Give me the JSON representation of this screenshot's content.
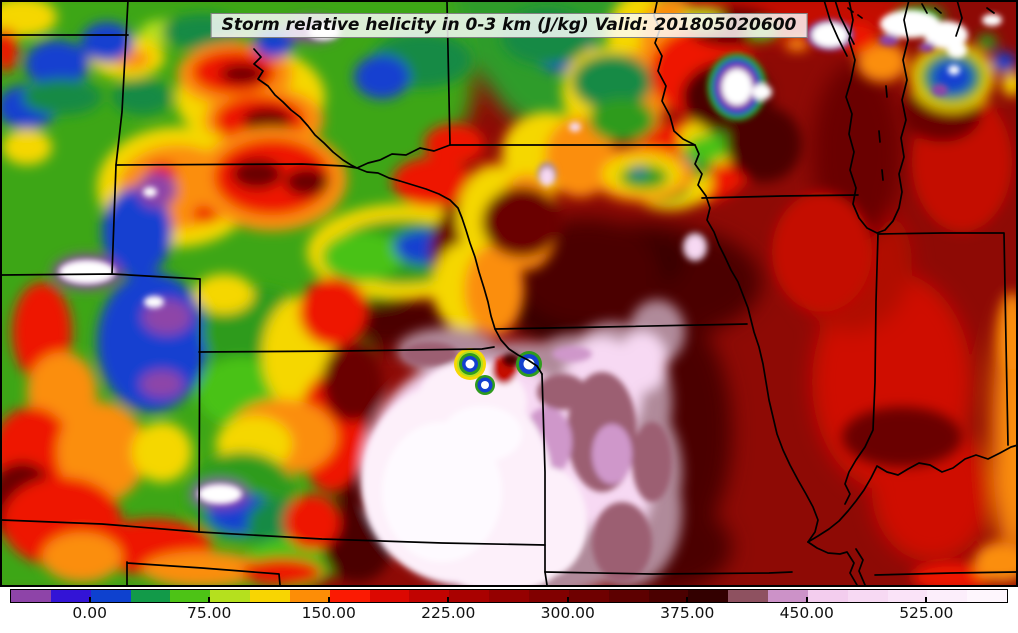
{
  "map": {
    "title": "Storm relative helicity in 0-3 km (J/kg) Valid: 201805020600",
    "variable": "Storm relative helicity in 0-3 km",
    "units": "J/kg",
    "valid_time": "201805020600"
  },
  "colorbar": {
    "min": -50,
    "max": 575,
    "segment_step": 25,
    "tick_values": [
      0,
      75,
      150,
      225,
      300,
      375,
      450,
      525
    ],
    "tick_labels": [
      "0.00",
      "75.00",
      "150.00",
      "225.00",
      "300.00",
      "375.00",
      "450.00",
      "525.00"
    ],
    "segments": [
      "#8e44a8",
      "#3314d6",
      "#0e41cf",
      "#129a49",
      "#4dc316",
      "#b5e01e",
      "#f8d502",
      "#fd8d06",
      "#fb1a02",
      "#dc0801",
      "#c10301",
      "#a90100",
      "#950000",
      "#810000",
      "#6f0000",
      "#5d0000",
      "#4b0000",
      "#330000",
      "#8e5160",
      "#cc92c8",
      "#f3cdee",
      "#f7d9f3",
      "#fae3f8",
      "#fceefb",
      "#fef6fd"
    ]
  },
  "chart_data": {
    "type": "heatmap",
    "title": "Storm relative helicity in 0-3 km (J/kg) Valid: 201805020600",
    "variable": "storm relative helicity 0-3 km",
    "units": "J/kg",
    "valid": "201805020600",
    "colorbar_ticks": [
      0,
      75,
      150,
      225,
      300,
      375,
      450,
      525
    ],
    "colorbar_range": [
      -50,
      575
    ],
    "legend_position": "bottom",
    "regions_estimated": [
      {
        "area": "eastern Kansas / Oklahoma / far western Missouri (large pale blob)",
        "value_J_per_kg": [
          450,
          575
        ]
      },
      {
        "area": "Missouri, Iowa, Wisconsin, Michigan interior (dark red field)",
        "value_J_per_kg": [
          250,
          400
        ]
      },
      {
        "area": "Illinois / Indiana corridor (bright red)",
        "value_J_per_kg": [
          150,
          250
        ]
      },
      {
        "area": "far east edge Kentucky/Indiana (orange-yellow)",
        "value_J_per_kg": [
          100,
          150
        ]
      },
      {
        "area": "Wyoming, western South Dakota, Colorado, western Nebraska (green/yellow mosaic)",
        "value_J_per_kg": [
          0,
          150
        ]
      },
      {
        "area": "isolated pockets: Colorado mountains, NE-SD border, MN-WI border, Kansas City rings, upper Michigan",
        "value_J_per_kg": [
          -50,
          25
        ]
      }
    ]
  }
}
